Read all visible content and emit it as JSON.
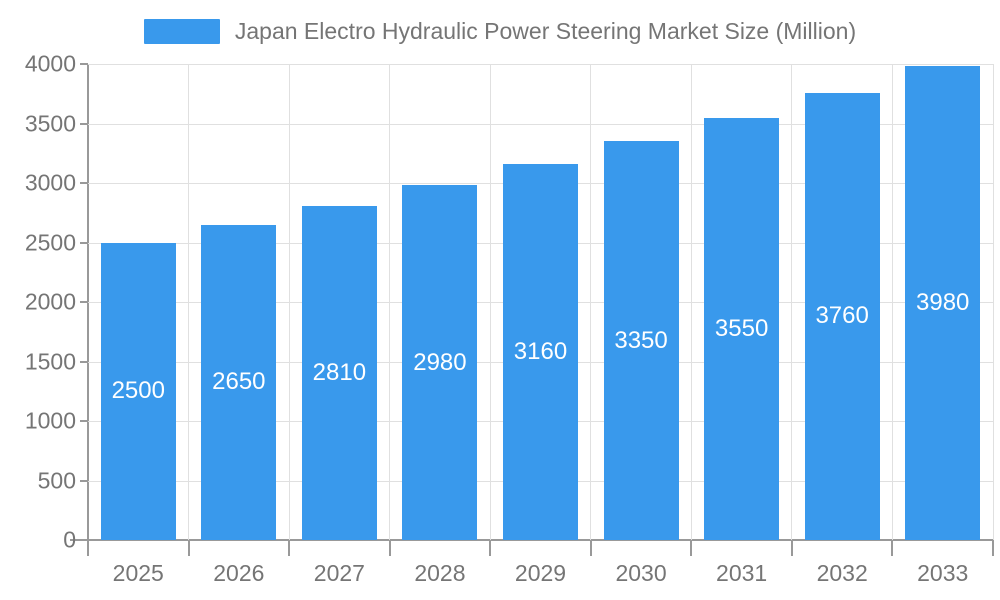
{
  "colors": {
    "bar": "#3999ec",
    "axis_line": "#999999",
    "grid_line": "#e0e0e0",
    "text": "#757575",
    "value_label": "#ffffff",
    "background": "#ffffff"
  },
  "legend": {
    "label": "Japan Electro Hydraulic Power Steering Market Size (Million)"
  },
  "chart_data": {
    "type": "bar",
    "title": "Japan Electro Hydraulic Power Steering Market Size (Million)",
    "categories": [
      "2025",
      "2026",
      "2027",
      "2028",
      "2029",
      "2030",
      "2031",
      "2032",
      "2033"
    ],
    "values": [
      2500,
      2650,
      2810,
      2980,
      3160,
      3350,
      3550,
      3760,
      3980
    ],
    "xlabel": "",
    "ylabel": "",
    "ylim": [
      0,
      4000
    ],
    "yticks": [
      0,
      500,
      1000,
      1500,
      2000,
      2500,
      3000,
      3500,
      4000
    ],
    "grid": true,
    "legend_position": "top",
    "value_label_position": "inside-center",
    "bar_color": "#3999ec"
  }
}
